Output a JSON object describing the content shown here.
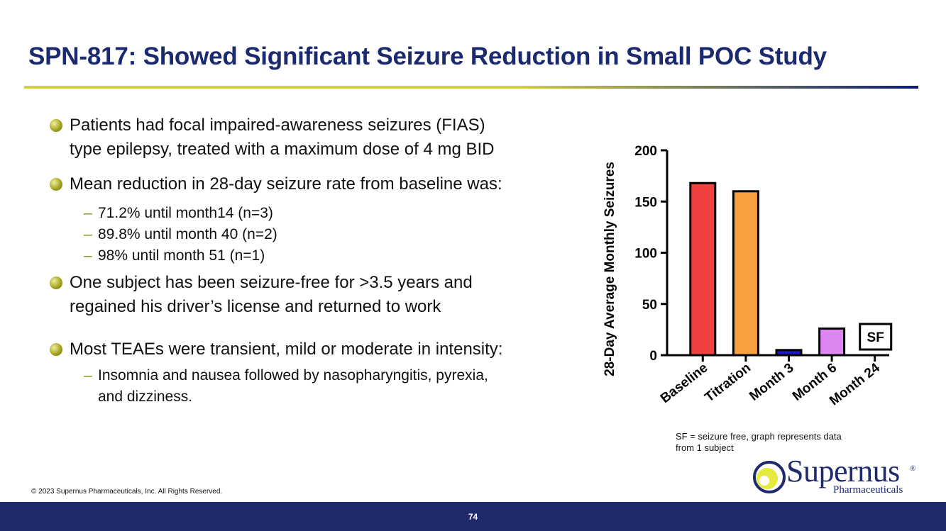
{
  "slide": {
    "title": "SPN-817: Showed Significant Seizure Reduction in Small POC Study",
    "copyright": "© 2023 Supernus Pharmaceuticals, Inc. All Rights Reserved.",
    "page_number": "74"
  },
  "colors": {
    "title": "#1b2a6e",
    "rule_start": "#d4d23c",
    "rule_end": "#0d1d7a",
    "bullet_dot": "#a7a51e",
    "bullet_dot_light": "#eef0a4",
    "dash": "#7f8f22",
    "footer": "#1e2a6c",
    "logo_text": "#1e2a6c",
    "logo_mark": "#e6ea3e"
  },
  "bullets": [
    {
      "text_lines": [
        "Patients had focal impaired-awareness seizures (FIAS)",
        "type epilepsy, treated with a maximum dose of 4 mg BID"
      ],
      "subs": []
    },
    {
      "text_lines": [
        "Mean reduction in 28-day seizure rate from baseline was:"
      ],
      "subs": [
        {
          "text_lines": [
            "71.2% until month14 (n=3)"
          ]
        },
        {
          "text_lines": [
            "89.8% until month 40 (n=2)"
          ]
        },
        {
          "text_lines": [
            "98% until month 51 (n=1)"
          ]
        }
      ]
    },
    {
      "text_lines": [
        "One subject has been seizure-free for >3.5 years and",
        "regained his driver’s license and returned to work"
      ],
      "subs": []
    },
    {
      "text_lines": [
        "Most TEAEs were transient, mild or moderate in intensity:"
      ],
      "subs": [
        {
          "text_lines": [
            "Insomnia and nausea followed by nasopharyngitis, pyrexia,",
            "and dizziness."
          ]
        }
      ]
    }
  ],
  "chart_data": {
    "type": "bar",
    "title": "",
    "xlabel": "",
    "ylabel": "28-Day Average Monthly Seizures",
    "categories": [
      "Baseline",
      "Titration",
      "Month 3",
      "Month 6",
      "Month 24"
    ],
    "values": [
      168,
      160,
      5,
      26,
      0
    ],
    "bar_colors": [
      "#f23f3f",
      "#f9a03f",
      "#1a1ac8",
      "#dd86f2",
      "#ffffff"
    ],
    "ylim": [
      0,
      200
    ],
    "yticks": [
      0,
      50,
      100,
      150,
      200
    ],
    "grid": false,
    "annotations": [
      {
        "category": "Month 24",
        "label": "SF"
      }
    ],
    "note": "SF = seizure free, graph represents data from 1 subject"
  },
  "logo": {
    "name": "Supernus",
    "registered_mark": "®",
    "subtitle": "Pharmaceuticals"
  }
}
